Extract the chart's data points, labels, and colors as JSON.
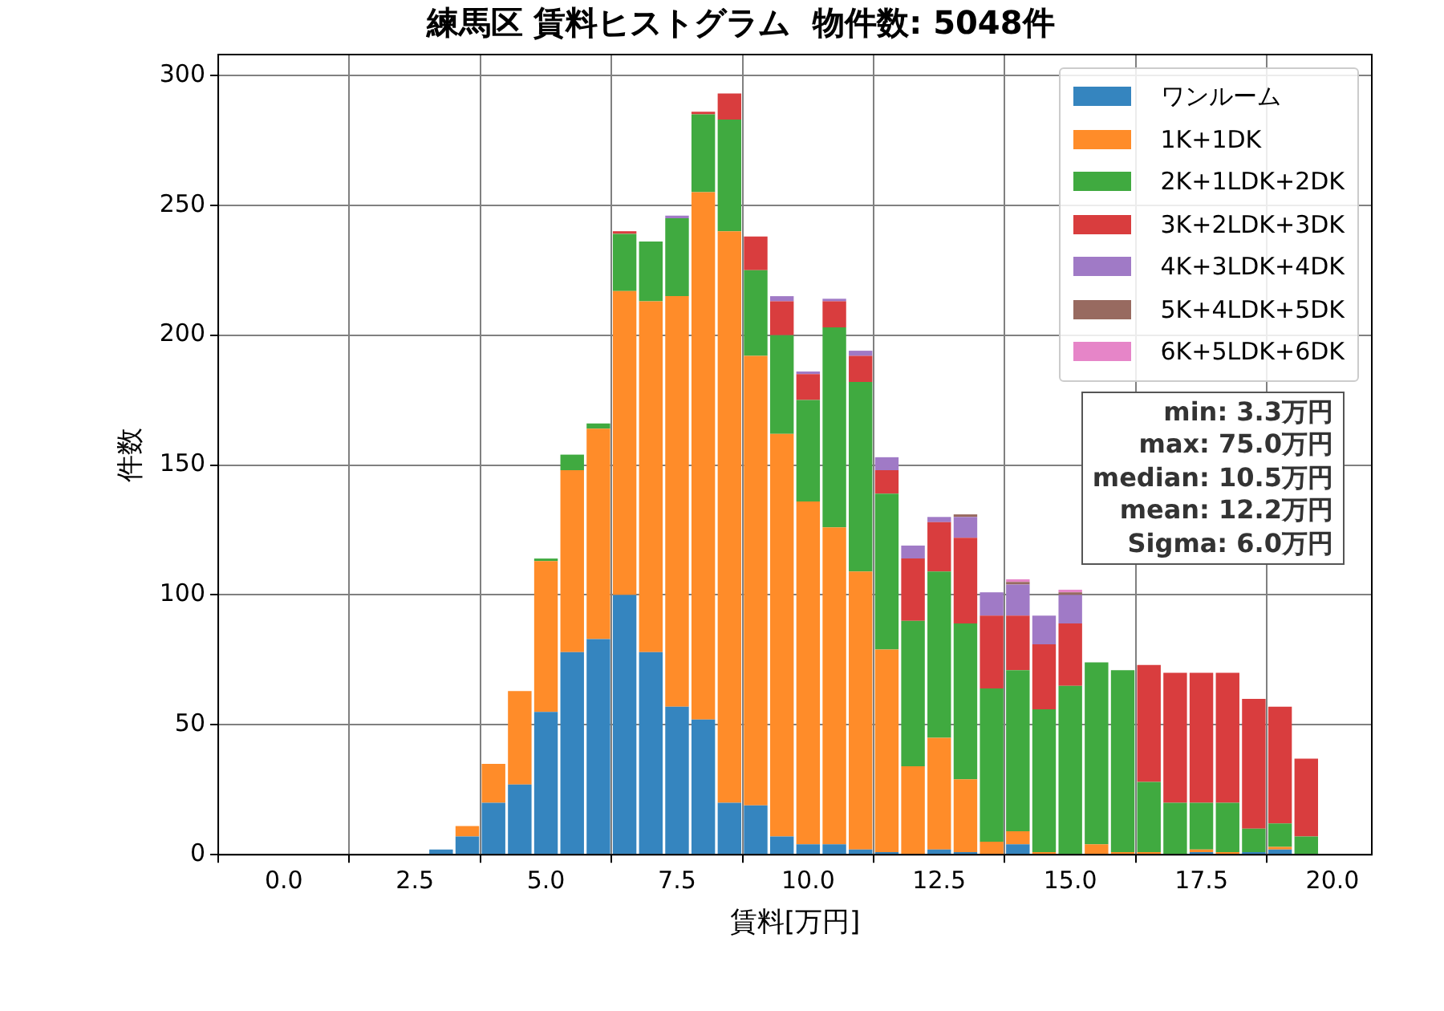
{
  "chart_data": {
    "type": "bar",
    "title": "練馬区 賃料ヒストグラム  物件数: 5048件",
    "xlabel": "賃料[万円]",
    "ylabel": "件数",
    "x": [
      3,
      3.5,
      4,
      4.5,
      5,
      5.5,
      6,
      6.5,
      7,
      7.5,
      8,
      8.5,
      9,
      9.5,
      10,
      10.5,
      11,
      11.5,
      12,
      12.5,
      13,
      13.5,
      14,
      14.5,
      15,
      15.5,
      16,
      16.5,
      17,
      17.5,
      18,
      18.5,
      19,
      19.5
    ],
    "stacked": true,
    "series": [
      {
        "name": "ワンルーム",
        "color": "#3585bf",
        "values": [
          2,
          7,
          20,
          27,
          55,
          78,
          83,
          100,
          78,
          57,
          52,
          20,
          19,
          7,
          4,
          4,
          2,
          1,
          0,
          2,
          1,
          0,
          4,
          0,
          0,
          0,
          0,
          0,
          0,
          1,
          0,
          1,
          2,
          0
        ]
      },
      {
        "name": "1K+1DK",
        "color": "#ff8c29",
        "values": [
          0,
          4,
          15,
          36,
          58,
          70,
          81,
          117,
          135,
          158,
          203,
          220,
          173,
          155,
          132,
          122,
          107,
          78,
          34,
          43,
          28,
          5,
          5,
          1,
          0,
          4,
          1,
          1,
          0,
          1,
          1,
          0,
          1,
          0
        ]
      },
      {
        "name": "2K+1LDK+2DK",
        "color": "#40aa40",
        "values": [
          0,
          0,
          0,
          0,
          1,
          6,
          2,
          22,
          23,
          30,
          30,
          43,
          33,
          38,
          39,
          77,
          73,
          60,
          56,
          64,
          60,
          59,
          62,
          55,
          65,
          70,
          70,
          27,
          20,
          18,
          19,
          9,
          9,
          7
        ]
      },
      {
        "name": "3K+2LDK+3DK",
        "color": "#d93d3e",
        "values": [
          0,
          0,
          0,
          0,
          0,
          0,
          0,
          1,
          0,
          0,
          1,
          10,
          13,
          13,
          10,
          10,
          10,
          9,
          24,
          19,
          33,
          28,
          21,
          25,
          24,
          null,
          null,
          45,
          50,
          50,
          50,
          50,
          45,
          30
        ]
      },
      {
        "name": "4K+3LDK+4DK",
        "color": "#a07ac6",
        "values": [
          0,
          0,
          0,
          0,
          0,
          0,
          0,
          0,
          0,
          1,
          0,
          0,
          0,
          2,
          1,
          1,
          2,
          5,
          5,
          2,
          8,
          9,
          12,
          11,
          11,
          null,
          null,
          0,
          0,
          0,
          0,
          0,
          0,
          0
        ]
      },
      {
        "name": "5K+4LDK+5DK",
        "color": "#986a60",
        "values": [
          0,
          0,
          0,
          0,
          0,
          0,
          0,
          0,
          0,
          0,
          0,
          0,
          0,
          0,
          0,
          0,
          0,
          0,
          0,
          0,
          1,
          0,
          1,
          0,
          1,
          null,
          null,
          0,
          0,
          0,
          0,
          0,
          0,
          0
        ]
      },
      {
        "name": "6K+5LDK+6DK",
        "color": "#e685c8",
        "values": [
          0,
          0,
          0,
          0,
          0,
          0,
          0,
          0,
          0,
          0,
          0,
          0,
          0,
          0,
          0,
          0,
          0,
          0,
          0,
          0,
          0,
          0,
          1,
          0,
          1,
          null,
          null,
          0,
          0,
          0,
          0,
          0,
          0,
          0
        ]
      }
    ],
    "xlim": [
      -1.25,
      20.75
    ],
    "xticks": [
      {
        "value": 0,
        "label": "0.0"
      },
      {
        "value": 2.5,
        "label": "2.5"
      },
      {
        "value": 5,
        "label": "5.0"
      },
      {
        "value": 7.5,
        "label": "7.5"
      },
      {
        "value": 10,
        "label": "10.0"
      },
      {
        "value": 12.5,
        "label": "12.5"
      },
      {
        "value": 15,
        "label": "15.0"
      },
      {
        "value": 17.5,
        "label": "17.5"
      },
      {
        "value": 20,
        "label": "20.0"
      }
    ],
    "ylim": [
      0,
      308
    ],
    "yticks": [
      0,
      50,
      100,
      150,
      200,
      250,
      300
    ],
    "grid": true,
    "legend": "top right",
    "annotations": [
      "min: 3.3万円",
      "max: 75.0万円",
      "median: 10.5万円",
      "mean: 12.2万円",
      "Sigma: 6.0万円"
    ]
  }
}
